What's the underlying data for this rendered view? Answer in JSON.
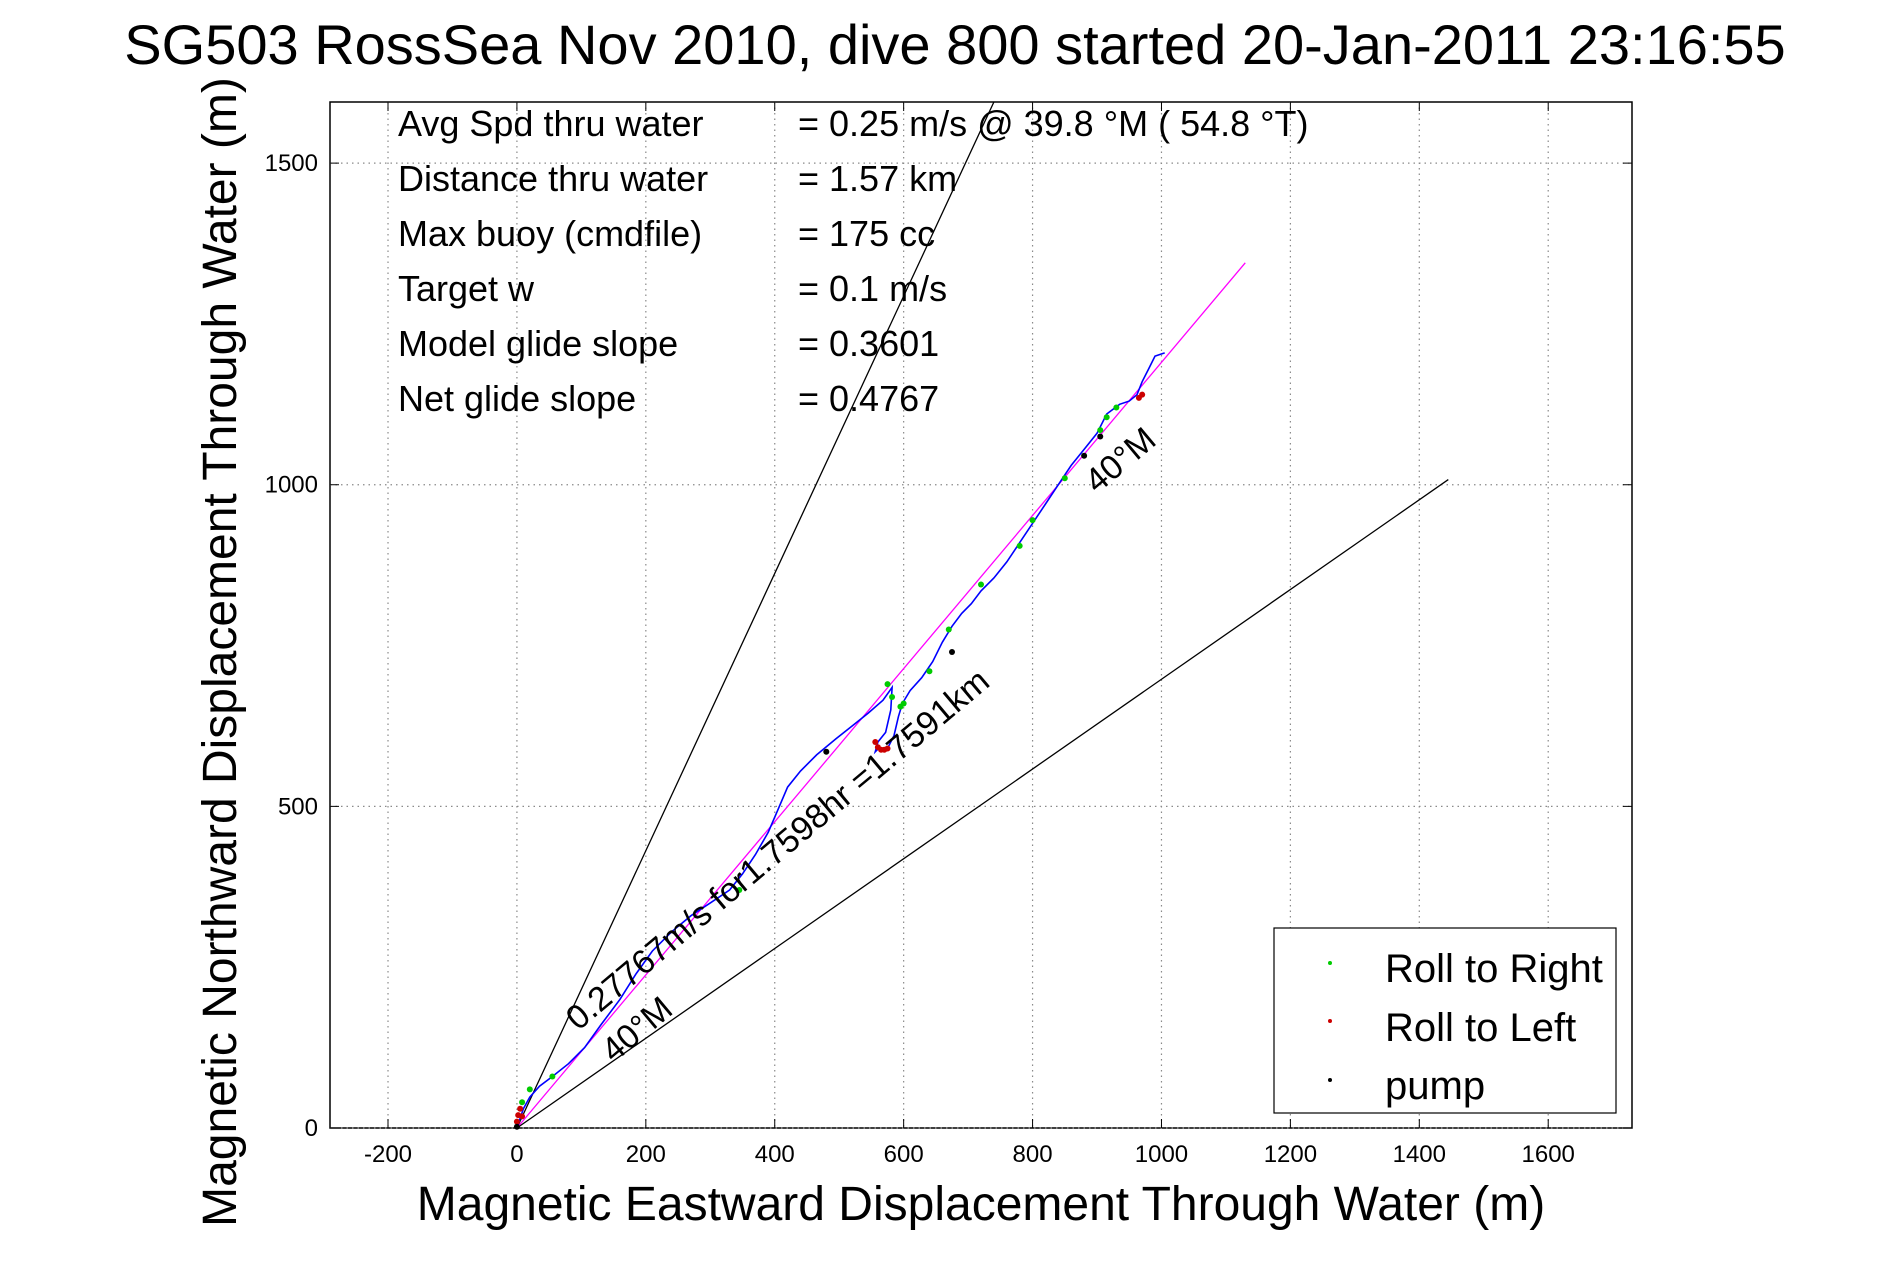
{
  "chart_data": {
    "type": "line",
    "title": "SG503 RossSea Nov 2010, dive 800 started 20-Jan-2011 23:16:55",
    "xlabel": "Magnetic Eastward Displacement Through Water (m)",
    "ylabel": "Magnetic Northward Displacement Through Water (m)",
    "xlim": [
      -290,
      1730
    ],
    "ylim": [
      0,
      1595
    ],
    "xticks": [
      -200,
      0,
      200,
      400,
      600,
      800,
      1000,
      1200,
      1400,
      1600
    ],
    "yticks": [
      0,
      500,
      1000,
      1500
    ],
    "grid": true,
    "legend_position": "bottom-right",
    "stats": [
      {
        "label": "Avg Spd thru water",
        "value": "=  0.25 m/s @  39.8 °M ( 54.8 °T)"
      },
      {
        "label": "Distance thru water",
        "value": "=  1.57 km"
      },
      {
        "label": "Max buoy (cmdfile)",
        "value": "= 175 cc"
      },
      {
        "label": "Target w",
        "value": "= 0.1 m/s"
      },
      {
        "label": "Model glide slope",
        "value": "= 0.3601"
      },
      {
        "label": "Net glide slope",
        "value": "= 0.4767"
      }
    ],
    "annotations": [
      {
        "text": "0.27767m/s for1.7598hr =1.7591km",
        "x": 95,
        "y": 150,
        "angle_deg": 40
      },
      {
        "text": "40°M",
        "x": 150,
        "y": 100,
        "angle_deg": 40
      },
      {
        "text": "40°M",
        "x": 900,
        "y": 985,
        "angle_deg": 40
      }
    ],
    "reference_lines": [
      {
        "name": "",
        "color": "#000000",
        "x": [
          0,
          740
        ],
        "y": [
          0,
          1595
        ]
      },
      {
        "name": "",
        "color": "#000000",
        "x": [
          0,
          1445
        ],
        "y": [
          0,
          1008
        ]
      },
      {
        "name": "",
        "color": "#ff00ff",
        "x": [
          0,
          1130
        ],
        "y": [
          0,
          1345
        ]
      }
    ],
    "track": {
      "color": "#0000ff",
      "x": [
        0,
        5,
        10,
        20,
        35,
        55,
        80,
        105,
        130,
        160,
        185,
        210,
        240,
        270,
        300,
        330,
        350,
        370,
        390,
        405,
        420,
        440,
        465,
        495,
        520,
        545,
        568,
        582,
        580,
        572,
        560,
        556,
        561,
        575,
        585,
        592,
        598,
        610,
        628,
        645,
        660,
        675,
        690,
        705,
        720,
        740,
        760,
        780,
        800,
        820,
        840,
        860,
        880,
        900,
        915,
        935,
        950,
        962,
        970,
        980,
        990,
        1005
      ],
      "y": [
        0,
        15,
        30,
        48,
        65,
        80,
        100,
        125,
        160,
        200,
        240,
        275,
        305,
        330,
        350,
        370,
        395,
        425,
        460,
        495,
        530,
        555,
        580,
        605,
        625,
        645,
        665,
        685,
        650,
        615,
        600,
        585,
        590,
        590,
        610,
        640,
        660,
        680,
        700,
        725,
        755,
        780,
        800,
        815,
        835,
        855,
        880,
        910,
        940,
        970,
        1000,
        1030,
        1055,
        1080,
        1110,
        1125,
        1130,
        1140,
        1160,
        1180,
        1200,
        1205
      ]
    },
    "series": [
      {
        "name": "Roll to Right",
        "color": "#00cc00",
        "x": [
          8,
          20,
          55,
          345,
          575,
          582,
          595,
          600,
          640,
          670,
          720,
          780,
          800,
          850,
          905,
          915,
          930
        ],
        "y": [
          40,
          60,
          80,
          370,
          690,
          670,
          655,
          660,
          710,
          775,
          845,
          905,
          945,
          1010,
          1085,
          1105,
          1120
        ]
      },
      {
        "name": "Roll to Left",
        "color": "#cc0000",
        "x": [
          0,
          2,
          5,
          8,
          556,
          560,
          565,
          570,
          575,
          965,
          970
        ],
        "y": [
          10,
          20,
          30,
          18,
          600,
          592,
          588,
          588,
          590,
          1135,
          1140
        ]
      },
      {
        "name": "pump",
        "color": "#000000",
        "x": [
          0,
          480,
          675,
          880,
          905
        ],
        "y": [
          2,
          585,
          740,
          1045,
          1075
        ]
      }
    ]
  }
}
